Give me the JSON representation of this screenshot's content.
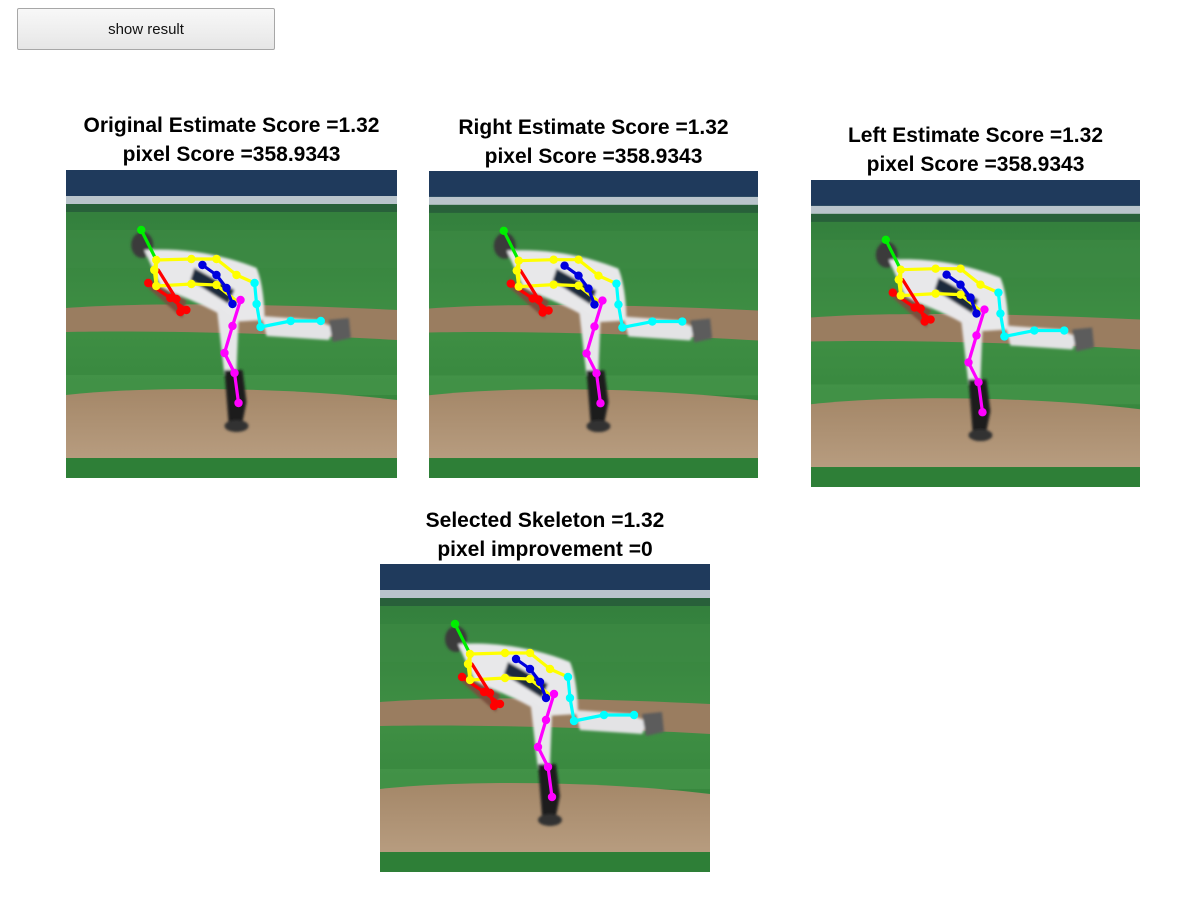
{
  "toolbar": {
    "show_result_label": "show result"
  },
  "panels": [
    {
      "line1": "Original Estimate Score =1.32",
      "line2": "pixel Score =358.9343"
    },
    {
      "line1": "Right Estimate Score =1.32",
      "line2": "pixel Score =358.9343"
    },
    {
      "line1": "Left Estimate Score =1.32",
      "line2": "pixel Score =358.9343"
    },
    {
      "line1": "Selected Skeleton =1.32",
      "line2": "pixel improvement =0"
    }
  ],
  "skeleton_colors": {
    "head": "#00ee00",
    "torso": "#ffff00",
    "right_arm": "#ff0000",
    "left_arm": "#0000dd",
    "right_leg": "#00ffff",
    "left_leg": "#ff00ff"
  }
}
